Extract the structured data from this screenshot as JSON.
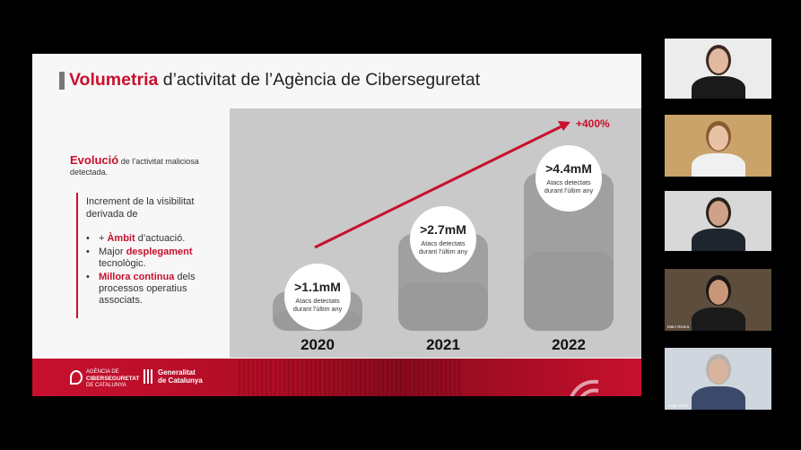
{
  "slide": {
    "title_accent": "Volumetria",
    "title_rest": " d’activitat de l’Agència de Ciberseguretat",
    "left_heading_accent": "Evolució",
    "left_heading_rest": " de l’activitat maliciosa detectada.",
    "lead_text": "Increment de la visibilitat derivada de",
    "bullets": [
      {
        "prefix": "+ ",
        "highlight": "Àmbit",
        "rest": " d’actuació."
      },
      {
        "prefix": "Major ",
        "highlight": "desplegament",
        "rest": " tecnològic."
      },
      {
        "prefix": "",
        "highlight": "Millora continua",
        "rest": " dels processos operatius associats."
      }
    ],
    "footer": {
      "agency_line1": "AGÈNCIA DE",
      "agency_line2": "CIBERSEGURETAT",
      "agency_line3": "DE CATALUNYA",
      "gov_line1": "Generalitat",
      "gov_line2": "de Catalunya"
    }
  },
  "chart_data": {
    "type": "bar",
    "categories": [
      "2020",
      "2021",
      "2022"
    ],
    "values": [
      1.1,
      2.7,
      4.4
    ],
    "value_labels": [
      ">1.1mM",
      ">2.7mM",
      ">4.4mM"
    ],
    "sublabel": [
      "Atacs detectats",
      "durant l’últim any"
    ],
    "trend_label": "+400%",
    "colors": {
      "bars": "#a0a0a0",
      "trend": "#c8102e",
      "panel": "#c9c9c9"
    }
  },
  "participants": [
    {
      "name": "",
      "wall": "#ececec",
      "skin": "#e2b9a0",
      "hair": "#3a2a22",
      "shirt": "#1a1a1a"
    },
    {
      "name": "",
      "wall": "#c9a36a",
      "skin": "#e8c2a5",
      "hair": "#8a5a32",
      "shirt": "#f0f0f0"
    },
    {
      "name": "",
      "wall": "#d8d8d8",
      "skin": "#cfa288",
      "hair": "#2b2119",
      "shirt": "#202630"
    },
    {
      "name": "Marc Rivera",
      "wall": "#5c4d3d",
      "skin": "#c9967a",
      "hair": "#1c1714",
      "shirt": "#1a1a1a"
    },
    {
      "name": "Jorge Zuria",
      "wall": "#cfd6de",
      "skin": "#d9b49c",
      "hair": "#b7b2ad",
      "shirt": "#3b4a6b"
    }
  ]
}
